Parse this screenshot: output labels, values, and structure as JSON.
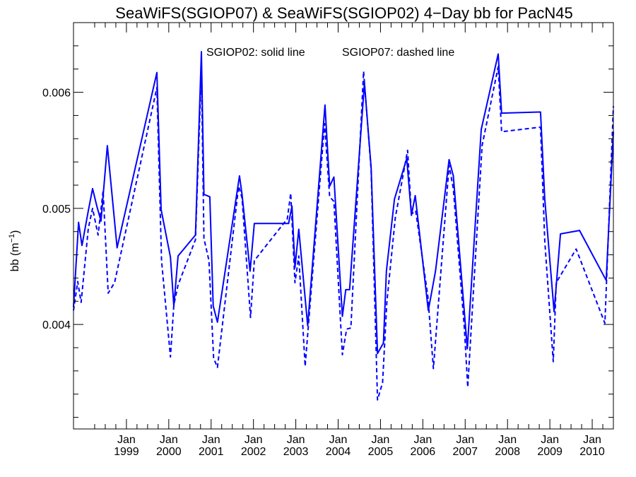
{
  "chart_data": {
    "type": "line",
    "title": "SeaWiFS(SGIOP07) & SeaWiFS(SGIOP02) 4−Day bb for PacN45",
    "ylabel_main": "bb (m",
    "ylabel_sup": "−1",
    "ylabel_close": ")",
    "annotation_solid": "SGIOP02: solid line",
    "annotation_dashed": "SGIOP07: dashed line",
    "xlim": [
      1997.75,
      2010.5
    ],
    "ylim": [
      0.0031,
      0.0066
    ],
    "y_ticks": [
      {
        "value": 0.004,
        "label": "0.004"
      },
      {
        "value": 0.005,
        "label": "0.005"
      },
      {
        "value": 0.006,
        "label": "0.006"
      }
    ],
    "x_ticks": [
      {
        "value": 1999,
        "month": "Jan",
        "year": "1999"
      },
      {
        "value": 2000,
        "month": "Jan",
        "year": "2000"
      },
      {
        "value": 2001,
        "month": "Jan",
        "year": "2001"
      },
      {
        "value": 2002,
        "month": "Jan",
        "year": "2002"
      },
      {
        "value": 2003,
        "month": "Jan",
        "year": "2003"
      },
      {
        "value": 2004,
        "month": "Jan",
        "year": "2004"
      },
      {
        "value": 2005,
        "month": "Jan",
        "year": "2005"
      },
      {
        "value": 2006,
        "month": "Jan",
        "year": "2006"
      },
      {
        "value": 2007,
        "month": "Jan",
        "year": "2007"
      },
      {
        "value": 2008,
        "month": "Jan",
        "year": "2008"
      },
      {
        "value": 2009,
        "month": "Jan",
        "year": "2009"
      },
      {
        "value": 2010,
        "month": "Jan",
        "year": "2010"
      }
    ],
    "color": "#0000ff",
    "series": [
      {
        "name": "SGIOP02",
        "style": "solid",
        "x": [
          1997.75,
          1997.87,
          1997.95,
          1998.1,
          1998.2,
          1998.3,
          1998.4,
          1998.55,
          1998.78,
          1999.72,
          1999.82,
          2000.04,
          2000.12,
          2000.22,
          2000.63,
          2000.77,
          2000.83,
          2000.97,
          2001.05,
          2001.15,
          2001.67,
          2001.73,
          2001.92,
          2002.02,
          2002.83,
          2002.91,
          2002.98,
          2003.07,
          2003.28,
          2003.69,
          2003.8,
          2003.9,
          2004.1,
          2004.18,
          2004.27,
          2004.62,
          2004.78,
          2004.93,
          2005.07,
          2005.14,
          2005.33,
          2005.62,
          2005.73,
          2005.82,
          2006.13,
          2006.3,
          2006.62,
          2006.72,
          2007.05,
          2007.38,
          2007.78,
          2007.86,
          2008.78,
          2008.88,
          2009.1,
          2009.25,
          2009.7,
          2010.33,
          2010.5
        ],
        "values": [
          0.00415,
          0.00488,
          0.00468,
          0.00498,
          0.00517,
          0.00502,
          0.00489,
          0.00554,
          0.00466,
          0.00617,
          0.00499,
          0.00458,
          0.00416,
          0.00459,
          0.00477,
          0.00635,
          0.00512,
          0.0051,
          0.00416,
          0.00402,
          0.00528,
          0.00512,
          0.00446,
          0.00487,
          0.00487,
          0.00502,
          0.00449,
          0.00482,
          0.00399,
          0.00589,
          0.00519,
          0.00527,
          0.00407,
          0.0043,
          0.0043,
          0.00608,
          0.00535,
          0.00375,
          0.00384,
          0.00446,
          0.00508,
          0.00543,
          0.00494,
          0.00511,
          0.00412,
          0.00446,
          0.00542,
          0.00528,
          0.00379,
          0.00568,
          0.00633,
          0.00582,
          0.00583,
          0.00508,
          0.00411,
          0.00478,
          0.00481,
          0.00438,
          0.00566
        ]
      },
      {
        "name": "SGIOP07",
        "style": "dashed",
        "x": [
          1997.75,
          1997.85,
          1997.93,
          1998.1,
          1998.2,
          1998.33,
          1998.45,
          1998.57,
          1998.72,
          1999.72,
          1999.83,
          2000.04,
          2000.12,
          2000.22,
          2000.63,
          2000.77,
          2000.83,
          2000.95,
          2001.06,
          2001.15,
          2001.65,
          2001.73,
          2001.93,
          2002.02,
          2002.8,
          2002.88,
          2002.98,
          2003.07,
          2003.22,
          2003.68,
          2003.8,
          2003.9,
          2004.1,
          2004.2,
          2004.3,
          2004.6,
          2004.78,
          2004.93,
          2005.05,
          2005.15,
          2005.35,
          2005.64,
          2005.73,
          2005.83,
          2006.12,
          2006.25,
          2006.62,
          2006.72,
          2006.98,
          2007.06,
          2007.4,
          2007.78,
          2007.86,
          2008.78,
          2008.88,
          2009.08,
          2009.15,
          2009.62,
          2010.3,
          2010.5
        ],
        "values": [
          0.00412,
          0.00437,
          0.00419,
          0.00483,
          0.005,
          0.00477,
          0.00515,
          0.00427,
          0.00436,
          0.00604,
          0.00455,
          0.00372,
          0.00417,
          0.00434,
          0.00473,
          0.0062,
          0.00474,
          0.00455,
          0.00371,
          0.00363,
          0.00519,
          0.00509,
          0.00406,
          0.00455,
          0.00491,
          0.00513,
          0.00436,
          0.00459,
          0.00364,
          0.00573,
          0.0051,
          0.00506,
          0.00374,
          0.00396,
          0.00397,
          0.00618,
          0.00533,
          0.00335,
          0.0035,
          0.00419,
          0.00492,
          0.0055,
          0.00495,
          0.00498,
          0.00424,
          0.00362,
          0.00537,
          0.00517,
          0.00397,
          0.00346,
          0.00554,
          0.00622,
          0.00566,
          0.0057,
          0.00472,
          0.00368,
          0.00436,
          0.00465,
          0.00401,
          0.00588
        ]
      }
    ]
  }
}
